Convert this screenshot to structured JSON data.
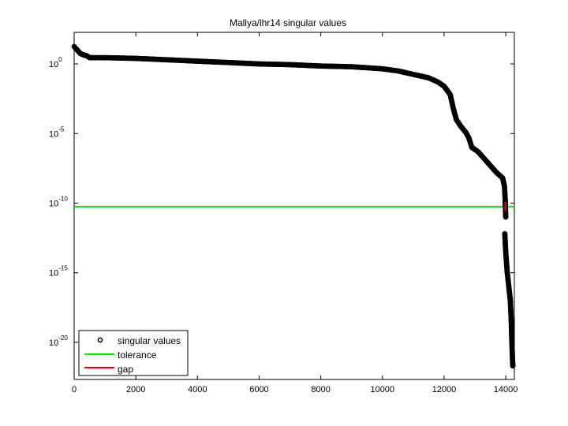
{
  "chart_data": {
    "type": "scatter",
    "title": "Mallya/lhr14 singular values",
    "xlabel": "",
    "ylabel": "",
    "yscale": "log",
    "xlim": [
      0,
      14280
    ],
    "ylim_log10": [
      2.27,
      -22.67
    ],
    "grid": false,
    "legend_position": "lower left",
    "x_ticks": [
      0,
      2000,
      4000,
      6000,
      8000,
      10000,
      12000,
      14000
    ],
    "x_tick_labels": [
      "0",
      "2000",
      "4000",
      "6000",
      "8000",
      "10000",
      "12000",
      "14000"
    ],
    "y_ticks_log10": [
      0,
      -5,
      -10,
      -15,
      -20
    ],
    "y_tick_labels": [
      {
        "base": "10",
        "exp": "0"
      },
      {
        "base": "10",
        "exp": "-5"
      },
      {
        "base": "10",
        "exp": "-10"
      },
      {
        "base": "10",
        "exp": "-15"
      },
      {
        "base": "10",
        "exp": "-20"
      }
    ],
    "series": [
      {
        "name": "singular values",
        "style": "black open circles",
        "color": "#000000",
        "points_log10": [
          [
            0,
            1.25
          ],
          [
            100,
            1.0
          ],
          [
            200,
            0.75
          ],
          [
            300,
            0.65
          ],
          [
            400,
            0.6
          ],
          [
            500,
            0.45
          ],
          [
            600,
            0.45
          ],
          [
            1000,
            0.45
          ],
          [
            2000,
            0.4
          ],
          [
            3000,
            0.3
          ],
          [
            4000,
            0.2
          ],
          [
            5000,
            0.1
          ],
          [
            6000,
            0.0
          ],
          [
            7000,
            -0.05
          ],
          [
            8000,
            -0.15
          ],
          [
            9000,
            -0.2
          ],
          [
            10000,
            -0.35
          ],
          [
            10500,
            -0.5
          ],
          [
            11000,
            -0.75
          ],
          [
            11500,
            -1.0
          ],
          [
            11800,
            -1.3
          ],
          [
            12000,
            -1.6
          ],
          [
            12200,
            -2.2
          ],
          [
            12300,
            -3.2
          ],
          [
            12400,
            -4.0
          ],
          [
            12550,
            -4.5
          ],
          [
            12700,
            -4.9
          ],
          [
            12800,
            -5.3
          ],
          [
            12900,
            -6.0
          ],
          [
            13100,
            -6.3
          ],
          [
            13300,
            -6.8
          ],
          [
            13500,
            -7.3
          ],
          [
            13700,
            -7.8
          ],
          [
            13900,
            -8.2
          ],
          [
            13960,
            -8.8
          ],
          [
            13980,
            -9.6
          ],
          [
            13990,
            -10.3
          ],
          [
            14000,
            -11.0
          ],
          [
            13970,
            -12.2
          ],
          [
            14000,
            -13.5
          ],
          [
            14050,
            -15.0
          ],
          [
            14100,
            -16.0
          ],
          [
            14150,
            -17.0
          ],
          [
            14180,
            -18.5
          ],
          [
            14200,
            -20.0
          ],
          [
            14210,
            -20.6
          ],
          [
            14220,
            -21.2
          ],
          [
            14230,
            -21.7
          ]
        ]
      },
      {
        "name": "tolerance",
        "style": "horizontal line",
        "color": "#00ee00",
        "value_log10": -10.25
      },
      {
        "name": "gap",
        "style": "vertical line",
        "color": "#ee0000",
        "x": 13990,
        "from_log10": -9.9,
        "to_log10": -10.55
      }
    ],
    "legend": [
      {
        "label": "singular values",
        "marker": "circle",
        "color": "#000000"
      },
      {
        "label": "tolerance",
        "marker": "line",
        "color": "#00ee00"
      },
      {
        "label": "gap",
        "marker": "line",
        "color": "#ee0000"
      }
    ]
  }
}
